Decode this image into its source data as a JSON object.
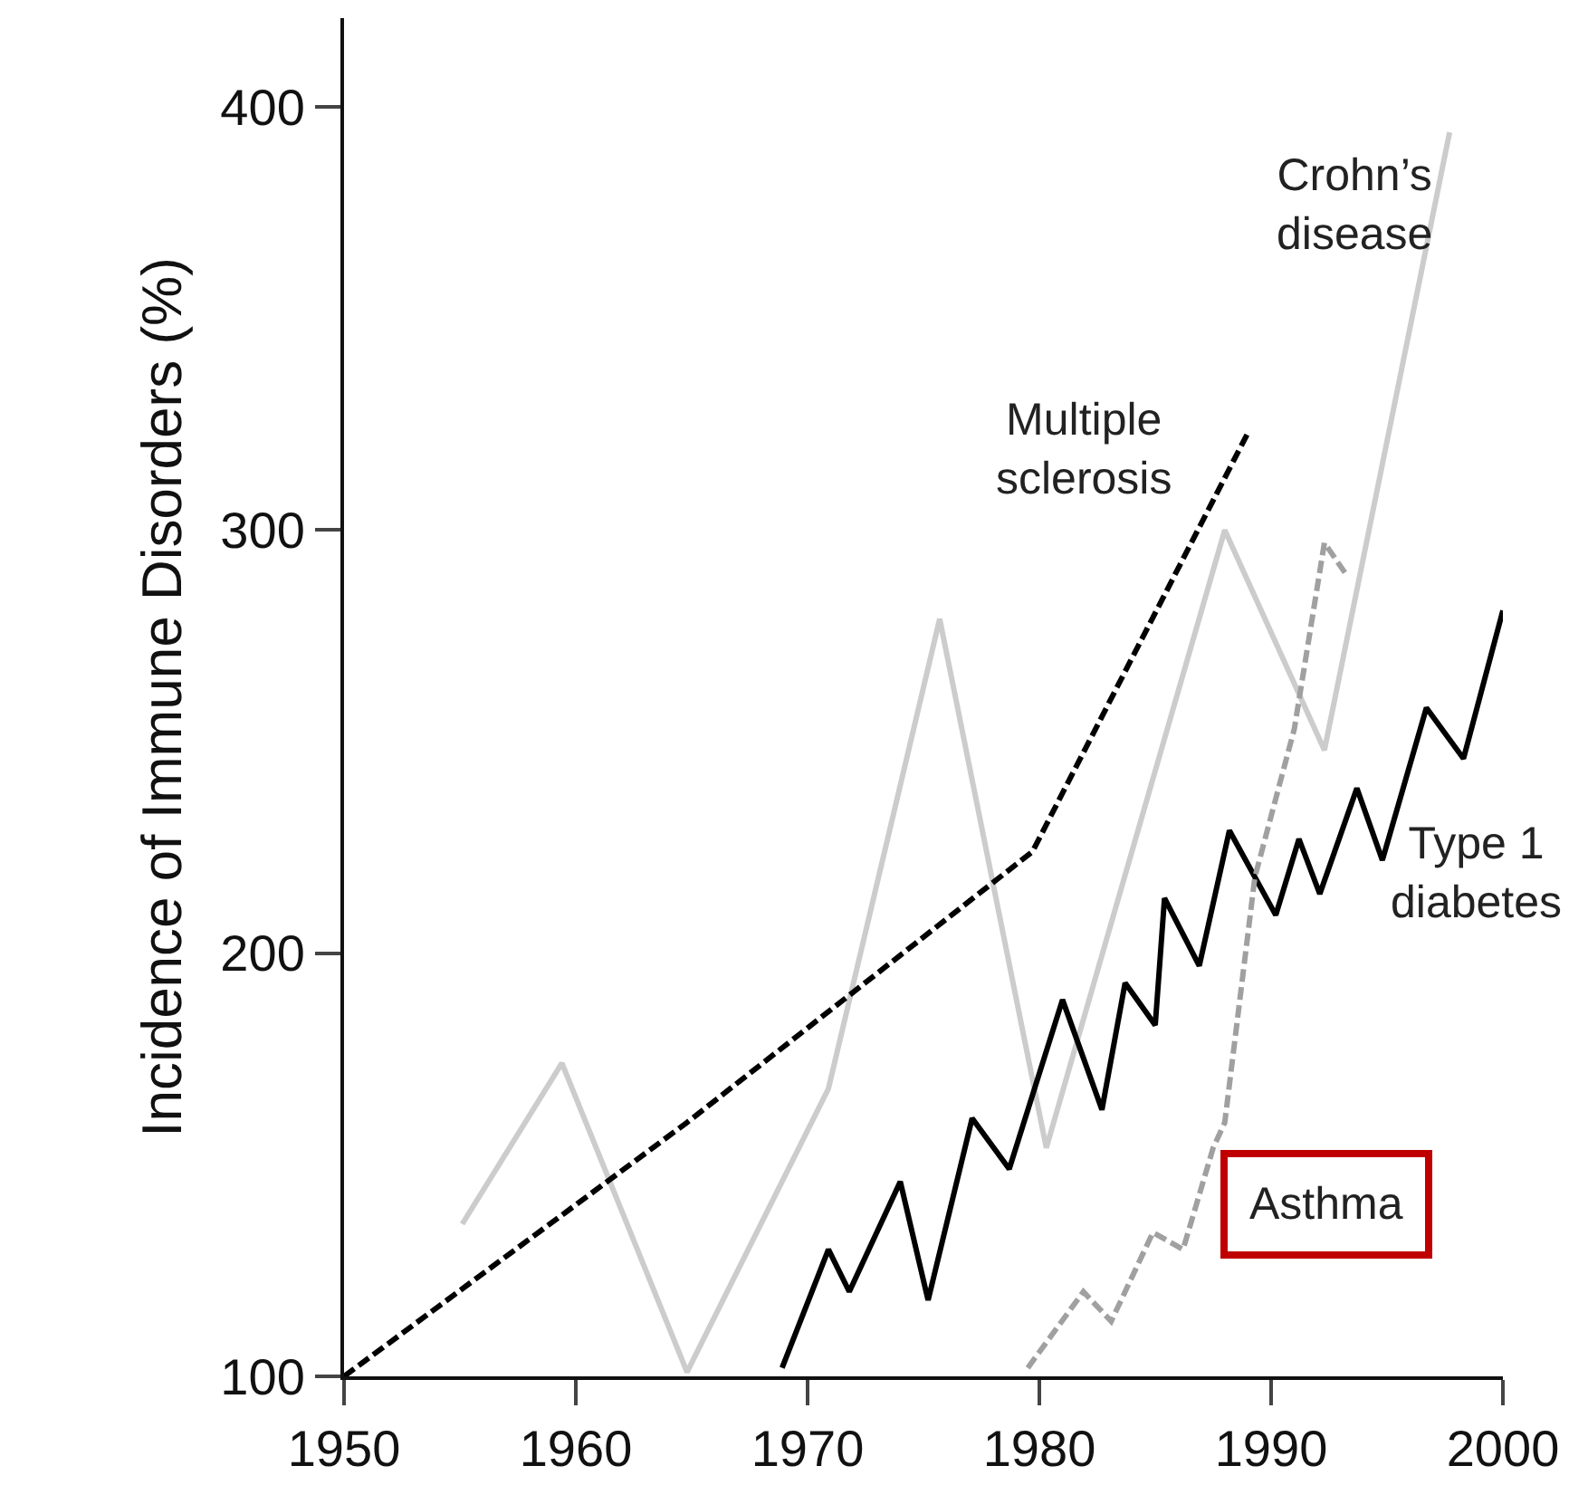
{
  "chart_data": {
    "type": "line",
    "ylabel": "Incidence of Immune Disorders (%)",
    "xlim": [
      1950,
      2000
    ],
    "xticks": [
      1950,
      1960,
      1970,
      1980,
      1990,
      2000
    ],
    "ylim": [
      100,
      421
    ],
    "yticks": [
      100,
      200,
      300,
      400
    ],
    "grid": false,
    "legend": false,
    "marker": "none",
    "series": [
      {
        "name": "Crohn’s disease",
        "color": "#cccccc",
        "line_style": "solid",
        "x": [
          1955.1,
          1959.4,
          1964.8,
          1970.9,
          1975.7,
          1980.3,
          1988,
          1992.3,
          1997.7
        ],
        "values": [
          136,
          174,
          101,
          168,
          279,
          154,
          300,
          248,
          394
        ]
      },
      {
        "name": "Multiple sclerosis",
        "color": "#000000",
        "line_style": "dashed",
        "x": [
          1950,
          1964.8,
          1979.7,
          1989
        ],
        "values": [
          100,
          160,
          224,
          323
        ]
      },
      {
        "name": "Type 1 diabetes",
        "color": "#000000",
        "line_style": "solid",
        "x": [
          1968.9,
          1970.9,
          1971.8,
          1974,
          1975.2,
          1977.1,
          1978.7,
          1981,
          1982.7,
          1983.7,
          1985,
          1985.4,
          1986.9,
          1988.2,
          1990.2,
          1991.2,
          1992.1,
          1993.7,
          1994.8,
          1996.7,
          1998.3,
          2000
        ],
        "values": [
          102,
          130,
          120,
          146,
          118,
          161,
          149,
          189,
          163,
          193,
          183,
          213,
          197,
          229,
          209,
          227,
          214,
          239,
          222,
          258,
          246,
          281
        ]
      },
      {
        "name": "Asthma",
        "color": "#a0a0a0",
        "line_style": "dashed",
        "x": [
          1979.5,
          1981.9,
          1983.1,
          1984.9,
          1986.2,
          1987.5,
          1988,
          1989.3,
          1991,
          1992.3,
          1993.3
        ],
        "values": [
          102,
          120,
          113,
          134,
          130,
          154,
          160,
          218,
          253,
          297,
          289
        ]
      }
    ]
  }
}
